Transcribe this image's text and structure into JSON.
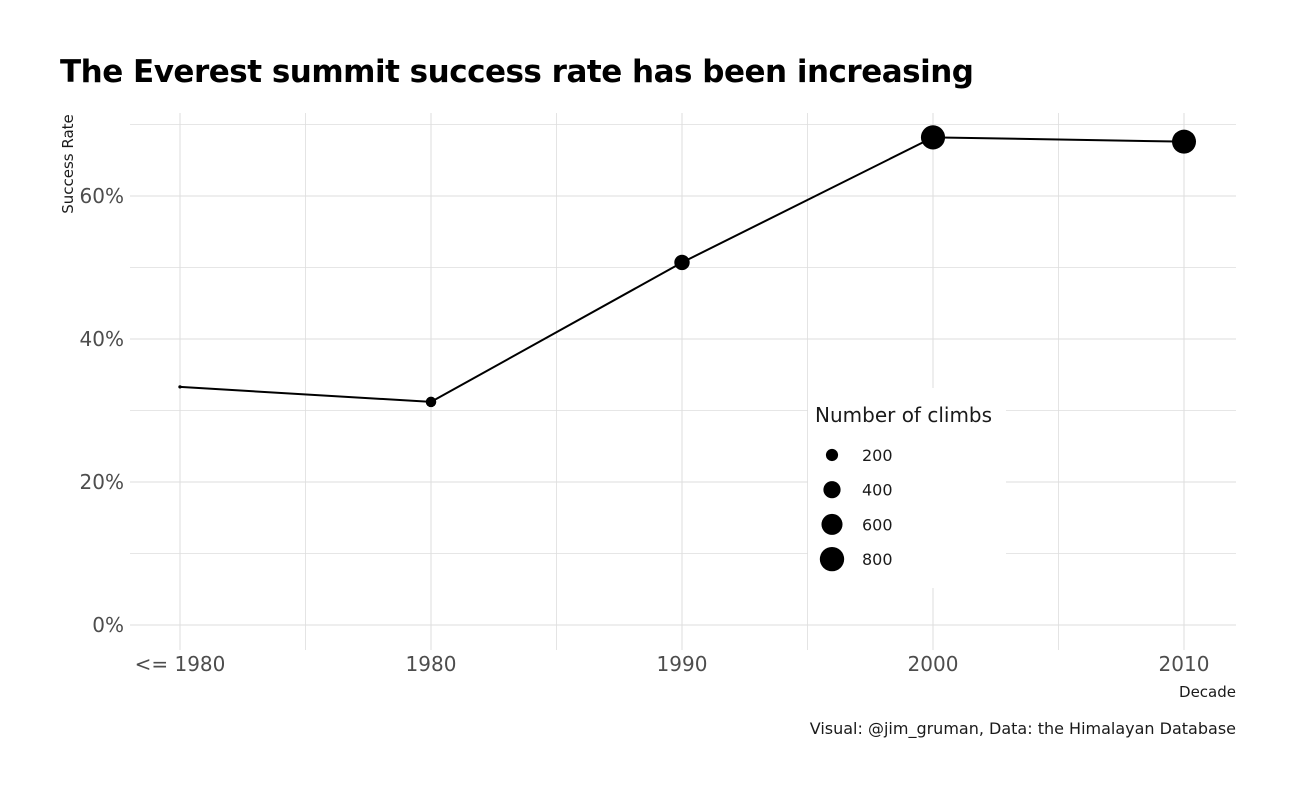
{
  "chart_data": {
    "type": "line",
    "title": "The Everest summit success rate has been increasing",
    "xlabel": "Decade",
    "ylabel": "Success Rate",
    "categories": [
      "<= 1980",
      "1980",
      "1990",
      "2000",
      "2010"
    ],
    "series": [
      {
        "values": [
          33.3,
          31.2,
          50.7,
          68.2,
          67.6
        ],
        "climbs": [
          15,
          150,
          320,
          790,
          780
        ]
      }
    ],
    "ylim": [
      0,
      70
    ],
    "yticks": [
      0,
      20,
      40,
      60
    ],
    "ytick_labels": [
      "0%",
      "20%",
      "40%",
      "60%"
    ],
    "grid": true,
    "legend": {
      "title": "Number of climbs",
      "placement": "inside-bottom-right",
      "sizes": [
        200,
        400,
        600,
        800
      ],
      "labels": [
        "200",
        "400",
        "600",
        "800"
      ]
    },
    "caption": "Visual: @jim_gruman, Data:  the Himalayan Database",
    "colors": {
      "line": "#000000",
      "point": "#000000",
      "grid": "#dedede",
      "background": "#ffffff"
    }
  }
}
